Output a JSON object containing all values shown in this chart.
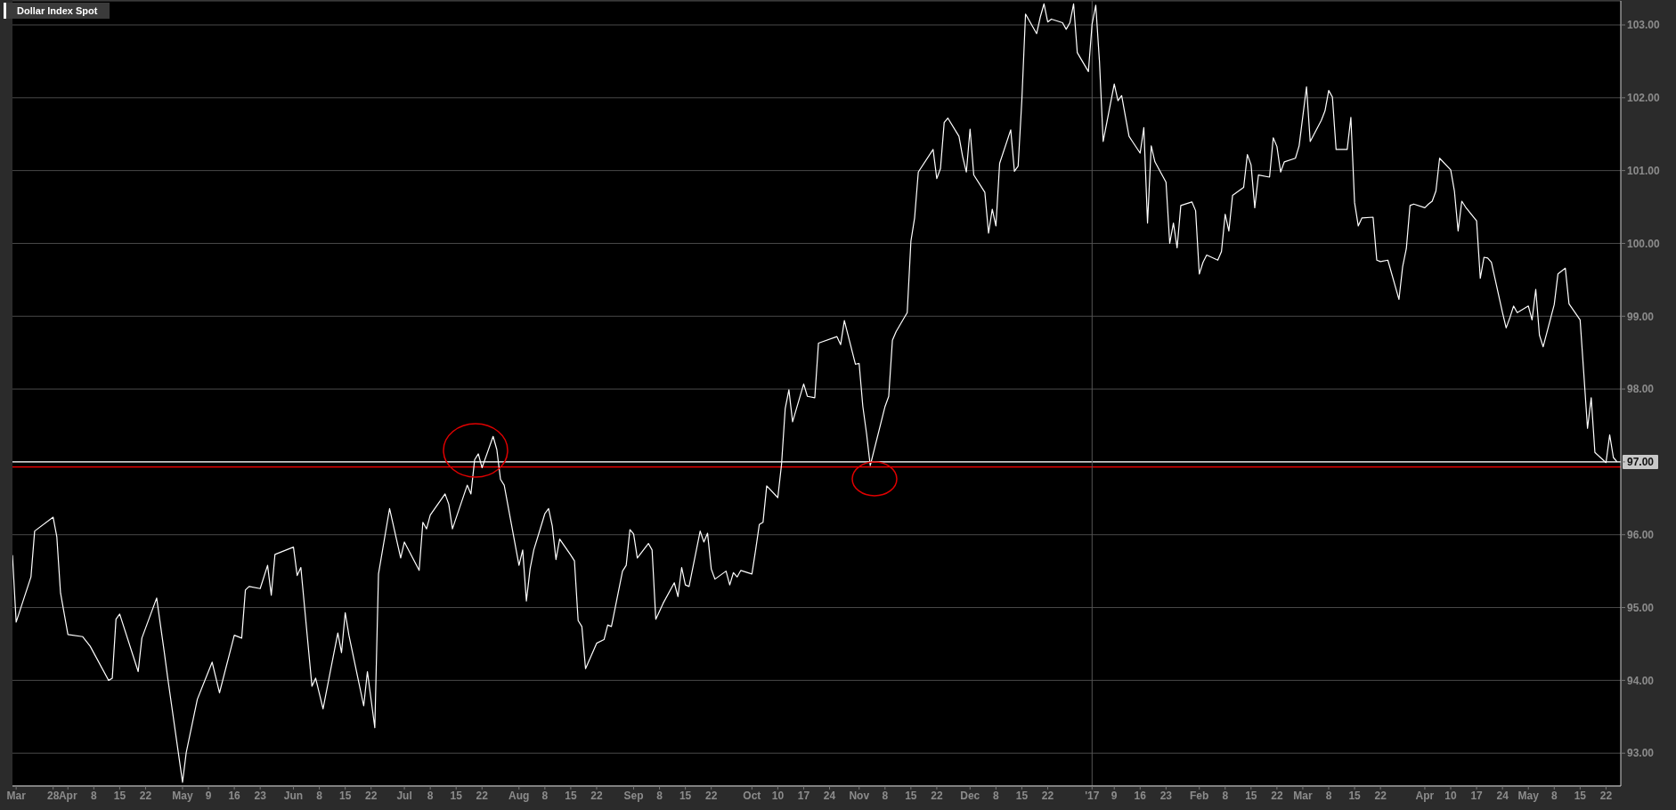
{
  "chart_data": {
    "type": "line",
    "title": "Dollar Index Spot",
    "color": "#ffffff",
    "marker": "none",
    "legend": false,
    "grid": "y",
    "x": [
      "2016-03-17",
      "2016-03-18",
      "2016-03-22",
      "2016-03-23",
      "2016-03-28",
      "2016-03-29",
      "2016-03-30",
      "2016-04-01",
      "2016-04-05",
      "2016-04-07",
      "2016-04-12",
      "2016-04-13",
      "2016-04-14",
      "2016-04-15",
      "2016-04-20",
      "2016-04-21",
      "2016-04-25",
      "2016-04-27",
      "2016-04-28",
      "2016-05-02",
      "2016-05-03",
      "2016-05-06",
      "2016-05-10",
      "2016-05-12",
      "2016-05-16",
      "2016-05-18",
      "2016-05-19",
      "2016-05-20",
      "2016-05-23",
      "2016-05-25",
      "2016-05-26",
      "2016-05-27",
      "2016-06-01",
      "2016-06-02",
      "2016-06-03",
      "2016-06-06",
      "2016-06-07",
      "2016-06-09",
      "2016-06-13",
      "2016-06-14",
      "2016-06-15",
      "2016-06-16",
      "2016-06-20",
      "2016-06-21",
      "2016-06-23",
      "2016-06-24",
      "2016-06-27",
      "2016-06-30",
      "2016-07-01",
      "2016-07-05",
      "2016-07-06",
      "2016-07-07",
      "2016-07-08",
      "2016-07-12",
      "2016-07-13",
      "2016-07-14",
      "2016-07-18",
      "2016-07-19",
      "2016-07-20",
      "2016-07-21",
      "2016-07-22",
      "2016-07-25",
      "2016-07-26",
      "2016-07-27",
      "2016-07-28",
      "2016-08-01",
      "2016-08-02",
      "2016-08-03",
      "2016-08-04",
      "2016-08-05",
      "2016-08-08",
      "2016-08-09",
      "2016-08-10",
      "2016-08-11",
      "2016-08-12",
      "2016-08-15",
      "2016-08-16",
      "2016-08-17",
      "2016-08-18",
      "2016-08-19",
      "2016-08-22",
      "2016-08-24",
      "2016-08-25",
      "2016-08-26",
      "2016-08-29",
      "2016-08-30",
      "2016-08-31",
      "2016-09-01",
      "2016-09-02",
      "2016-09-05",
      "2016-09-06",
      "2016-09-07",
      "2016-09-09",
      "2016-09-12",
      "2016-09-13",
      "2016-09-14",
      "2016-09-15",
      "2016-09-16",
      "2016-09-19",
      "2016-09-20",
      "2016-09-21",
      "2016-09-22",
      "2016-09-23",
      "2016-09-26",
      "2016-09-27",
      "2016-09-28",
      "2016-09-29",
      "2016-09-30",
      "2016-10-03",
      "2016-10-04",
      "2016-10-05",
      "2016-10-06",
      "2016-10-07",
      "2016-10-10",
      "2016-10-11",
      "2016-10-12",
      "2016-10-13",
      "2016-10-14",
      "2016-10-17",
      "2016-10-18",
      "2016-10-20",
      "2016-10-21",
      "2016-10-26",
      "2016-10-27",
      "2016-10-28",
      "2016-10-31",
      "2016-11-01",
      "2016-11-02",
      "2016-11-03",
      "2016-11-04",
      "2016-11-08",
      "2016-11-09",
      "2016-11-10",
      "2016-11-11",
      "2016-11-14",
      "2016-11-15",
      "2016-11-16",
      "2016-11-17",
      "2016-11-21",
      "2016-11-22",
      "2016-11-23",
      "2016-11-24",
      "2016-11-25",
      "2016-11-28",
      "2016-11-29",
      "2016-11-30",
      "2016-12-01",
      "2016-12-02",
      "2016-12-05",
      "2016-12-06",
      "2016-12-07",
      "2016-12-08",
      "2016-12-09",
      "2016-12-12",
      "2016-12-13",
      "2016-12-14",
      "2016-12-15",
      "2016-12-16",
      "2016-12-19",
      "2016-12-20",
      "2016-12-21",
      "2016-12-22",
      "2016-12-23",
      "2016-12-26",
      "2016-12-27",
      "2016-12-28",
      "2016-12-29",
      "2016-12-30",
      "2017-01-02",
      "2017-01-03",
      "2017-01-04",
      "2017-01-05",
      "2017-01-06",
      "2017-01-09",
      "2017-01-10",
      "2017-01-11",
      "2017-01-12",
      "2017-01-13",
      "2017-01-16",
      "2017-01-17",
      "2017-01-18",
      "2017-01-19",
      "2017-01-20",
      "2017-01-23",
      "2017-01-24",
      "2017-01-25",
      "2017-01-26",
      "2017-01-27",
      "2017-01-30",
      "2017-01-31",
      "2017-02-01",
      "2017-02-02",
      "2017-02-03",
      "2017-02-06",
      "2017-02-07",
      "2017-02-08",
      "2017-02-09",
      "2017-02-10",
      "2017-02-13",
      "2017-02-14",
      "2017-02-15",
      "2017-02-16",
      "2017-02-17",
      "2017-02-20",
      "2017-02-21",
      "2017-02-22",
      "2017-02-23",
      "2017-02-24",
      "2017-02-27",
      "2017-02-28",
      "2017-03-02",
      "2017-03-03",
      "2017-03-06",
      "2017-03-07",
      "2017-03-08",
      "2017-03-09",
      "2017-03-10",
      "2017-03-13",
      "2017-03-14",
      "2017-03-15",
      "2017-03-16",
      "2017-03-17",
      "2017-03-20",
      "2017-03-21",
      "2017-03-22",
      "2017-03-24",
      "2017-03-27",
      "2017-03-28",
      "2017-03-29",
      "2017-03-30",
      "2017-03-31",
      "2017-04-03",
      "2017-04-04",
      "2017-04-05",
      "2017-04-06",
      "2017-04-07",
      "2017-04-10",
      "2017-04-11",
      "2017-04-12",
      "2017-04-13",
      "2017-04-14",
      "2017-04-17",
      "2017-04-18",
      "2017-04-19",
      "2017-04-20",
      "2017-04-21",
      "2017-04-24",
      "2017-04-25",
      "2017-04-26",
      "2017-04-27",
      "2017-04-28",
      "2017-05-01",
      "2017-05-02",
      "2017-05-03",
      "2017-05-04",
      "2017-05-05",
      "2017-05-08",
      "2017-05-09",
      "2017-05-11",
      "2017-05-12",
      "2017-05-15",
      "2017-05-16",
      "2017-05-17",
      "2017-05-18",
      "2017-05-19",
      "2017-05-22",
      "2017-05-23",
      "2017-05-24",
      "2017-05-25"
    ],
    "values": [
      95.72,
      94.8,
      95.42,
      96.05,
      96.24,
      95.97,
      95.2,
      94.63,
      94.6,
      94.47,
      94.0,
      94.03,
      94.84,
      94.91,
      94.12,
      94.58,
      95.13,
      94.41,
      94.03,
      92.6,
      93.01,
      93.74,
      94.25,
      93.83,
      94.62,
      94.58,
      95.24,
      95.29,
      95.26,
      95.58,
      95.17,
      95.73,
      95.83,
      95.44,
      95.55,
      93.92,
      94.03,
      93.61,
      94.65,
      94.38,
      94.93,
      94.62,
      93.65,
      94.12,
      93.35,
      95.46,
      96.36,
      95.68,
      95.9,
      95.51,
      96.17,
      96.08,
      96.27,
      96.56,
      96.42,
      96.08,
      96.68,
      96.56,
      97.03,
      97.11,
      96.92,
      97.35,
      97.17,
      96.76,
      96.68,
      95.58,
      95.79,
      95.09,
      95.53,
      95.79,
      96.29,
      96.36,
      96.12,
      95.66,
      95.94,
      95.72,
      95.64,
      94.82,
      94.74,
      94.16,
      94.51,
      94.56,
      94.76,
      94.74,
      95.5,
      95.58,
      96.07,
      96.01,
      95.68,
      95.88,
      95.79,
      94.84,
      95.06,
      95.34,
      95.15,
      95.55,
      95.31,
      95.29,
      96.05,
      95.9,
      96.02,
      95.53,
      95.39,
      95.5,
      95.31,
      95.48,
      95.42,
      95.51,
      95.46,
      95.79,
      96.14,
      96.17,
      96.67,
      96.51,
      96.96,
      97.73,
      97.99,
      97.55,
      98.07,
      97.9,
      97.88,
      98.63,
      98.72,
      98.61,
      98.94,
      98.34,
      98.35,
      97.76,
      97.39,
      96.95,
      97.76,
      97.9,
      98.67,
      98.79,
      99.05,
      100.03,
      100.35,
      100.98,
      101.29,
      100.89,
      101.03,
      101.66,
      101.72,
      101.47,
      101.19,
      100.98,
      101.57,
      100.94,
      100.7,
      100.14,
      100.47,
      100.24,
      101.1,
      101.56,
      100.99,
      101.06,
      101.96,
      103.15,
      102.88,
      103.11,
      103.29,
      103.04,
      103.08,
      103.03,
      102.94,
      103.03,
      103.29,
      102.62,
      102.36,
      103.01,
      103.27,
      102.5,
      101.4,
      102.19,
      101.96,
      102.03,
      101.75,
      101.47,
      101.24,
      101.59,
      100.28,
      101.34,
      101.12,
      100.84,
      100.0,
      100.28,
      99.94,
      100.52,
      100.57,
      100.45,
      99.58,
      99.74,
      99.84,
      99.77,
      99.89,
      100.4,
      100.17,
      100.66,
      100.77,
      101.22,
      101.08,
      100.49,
      100.94,
      100.91,
      101.45,
      101.33,
      100.98,
      101.12,
      101.17,
      101.34,
      102.15,
      101.4,
      101.69,
      101.82,
      102.1,
      102.01,
      101.29,
      101.29,
      101.73,
      100.56,
      100.24,
      100.35,
      100.36,
      99.77,
      99.75,
      99.77,
      99.23,
      99.68,
      99.93,
      100.52,
      100.54,
      100.49,
      100.54,
      100.58,
      100.72,
      101.17,
      101.01,
      100.72,
      100.17,
      100.58,
      100.5,
      100.31,
      99.52,
      99.81,
      99.8,
      99.74,
      99.05,
      98.84,
      98.98,
      99.14,
      99.05,
      99.14,
      98.95,
      99.37,
      98.74,
      98.58,
      99.16,
      99.58,
      99.66,
      99.17,
      98.95,
      98.21,
      97.46,
      97.88,
      97.13,
      96.99,
      97.37,
      97.06,
      97.0
    ],
    "xlim": [
      "2016-03-17",
      "2017-05-26"
    ],
    "xticks": [
      {
        "value": "2016-03-18",
        "label": "Mar"
      },
      {
        "value": "2016-03-28",
        "label": "28"
      },
      {
        "value": "2016-04-01",
        "label": "Apr"
      },
      {
        "value": "2016-04-08",
        "label": "8"
      },
      {
        "value": "2016-04-15",
        "label": "15"
      },
      {
        "value": "2016-04-22",
        "label": "22"
      },
      {
        "value": "2016-05-02",
        "label": "May"
      },
      {
        "value": "2016-05-09",
        "label": "9"
      },
      {
        "value": "2016-05-16",
        "label": "16"
      },
      {
        "value": "2016-05-23",
        "label": "23"
      },
      {
        "value": "2016-06-01",
        "label": "Jun"
      },
      {
        "value": "2016-06-08",
        "label": "8"
      },
      {
        "value": "2016-06-15",
        "label": "15"
      },
      {
        "value": "2016-06-22",
        "label": "22"
      },
      {
        "value": "2016-07-01",
        "label": "Jul"
      },
      {
        "value": "2016-07-08",
        "label": "8"
      },
      {
        "value": "2016-07-15",
        "label": "15"
      },
      {
        "value": "2016-07-22",
        "label": "22"
      },
      {
        "value": "2016-08-01",
        "label": "Aug"
      },
      {
        "value": "2016-08-08",
        "label": "8"
      },
      {
        "value": "2016-08-15",
        "label": "15"
      },
      {
        "value": "2016-08-22",
        "label": "22"
      },
      {
        "value": "2016-09-01",
        "label": "Sep"
      },
      {
        "value": "2016-09-08",
        "label": "8"
      },
      {
        "value": "2016-09-15",
        "label": "15"
      },
      {
        "value": "2016-09-22",
        "label": "22"
      },
      {
        "value": "2016-10-03",
        "label": "Oct"
      },
      {
        "value": "2016-10-10",
        "label": "10"
      },
      {
        "value": "2016-10-17",
        "label": "17"
      },
      {
        "value": "2016-10-24",
        "label": "24"
      },
      {
        "value": "2016-11-01",
        "label": "Nov"
      },
      {
        "value": "2016-11-08",
        "label": "8"
      },
      {
        "value": "2016-11-15",
        "label": "15"
      },
      {
        "value": "2016-11-22",
        "label": "22"
      },
      {
        "value": "2016-12-01",
        "label": "Dec"
      },
      {
        "value": "2016-12-08",
        "label": "8"
      },
      {
        "value": "2016-12-15",
        "label": "15"
      },
      {
        "value": "2016-12-22",
        "label": "22"
      },
      {
        "value": "2017-01-03",
        "label": "'17"
      },
      {
        "value": "2017-01-09",
        "label": "9"
      },
      {
        "value": "2017-01-16",
        "label": "16"
      },
      {
        "value": "2017-01-23",
        "label": "23"
      },
      {
        "value": "2017-02-01",
        "label": "Feb"
      },
      {
        "value": "2017-02-08",
        "label": "8"
      },
      {
        "value": "2017-02-15",
        "label": "15"
      },
      {
        "value": "2017-02-22",
        "label": "22"
      },
      {
        "value": "2017-03-01",
        "label": "Mar"
      },
      {
        "value": "2017-03-08",
        "label": "8"
      },
      {
        "value": "2017-03-15",
        "label": "15"
      },
      {
        "value": "2017-03-22",
        "label": "22"
      },
      {
        "value": "2017-04-03",
        "label": "Apr"
      },
      {
        "value": "2017-04-10",
        "label": "10"
      },
      {
        "value": "2017-04-17",
        "label": "17"
      },
      {
        "value": "2017-04-24",
        "label": "24"
      },
      {
        "value": "2017-05-01",
        "label": "May"
      },
      {
        "value": "2017-05-08",
        "label": "8"
      },
      {
        "value": "2017-05-15",
        "label": "15"
      },
      {
        "value": "2017-05-22",
        "label": "22"
      }
    ],
    "ylim": [
      92.55,
      103.33
    ],
    "yticks": [
      {
        "value": 93,
        "label": "93.00"
      },
      {
        "value": 94,
        "label": "94.00"
      },
      {
        "value": 95,
        "label": "95.00"
      },
      {
        "value": 96,
        "label": "96.00"
      },
      {
        "value": 97,
        "label": null
      },
      {
        "value": 98,
        "label": "98.00"
      },
      {
        "value": 99,
        "label": "99.00"
      },
      {
        "value": 100,
        "label": "100.00"
      },
      {
        "value": 101,
        "label": "101.00"
      },
      {
        "value": 102,
        "label": "102.00"
      },
      {
        "value": 103,
        "label": "103.00"
      }
    ],
    "ref_lines": [
      {
        "axis": "y",
        "value": 97.0,
        "label": "97.00",
        "color": "#ffffff"
      },
      {
        "axis": "y",
        "value": 96.93,
        "color": "#ff0000"
      },
      {
        "axis": "x",
        "value": "2017-01-03",
        "color": "#555555"
      }
    ]
  }
}
